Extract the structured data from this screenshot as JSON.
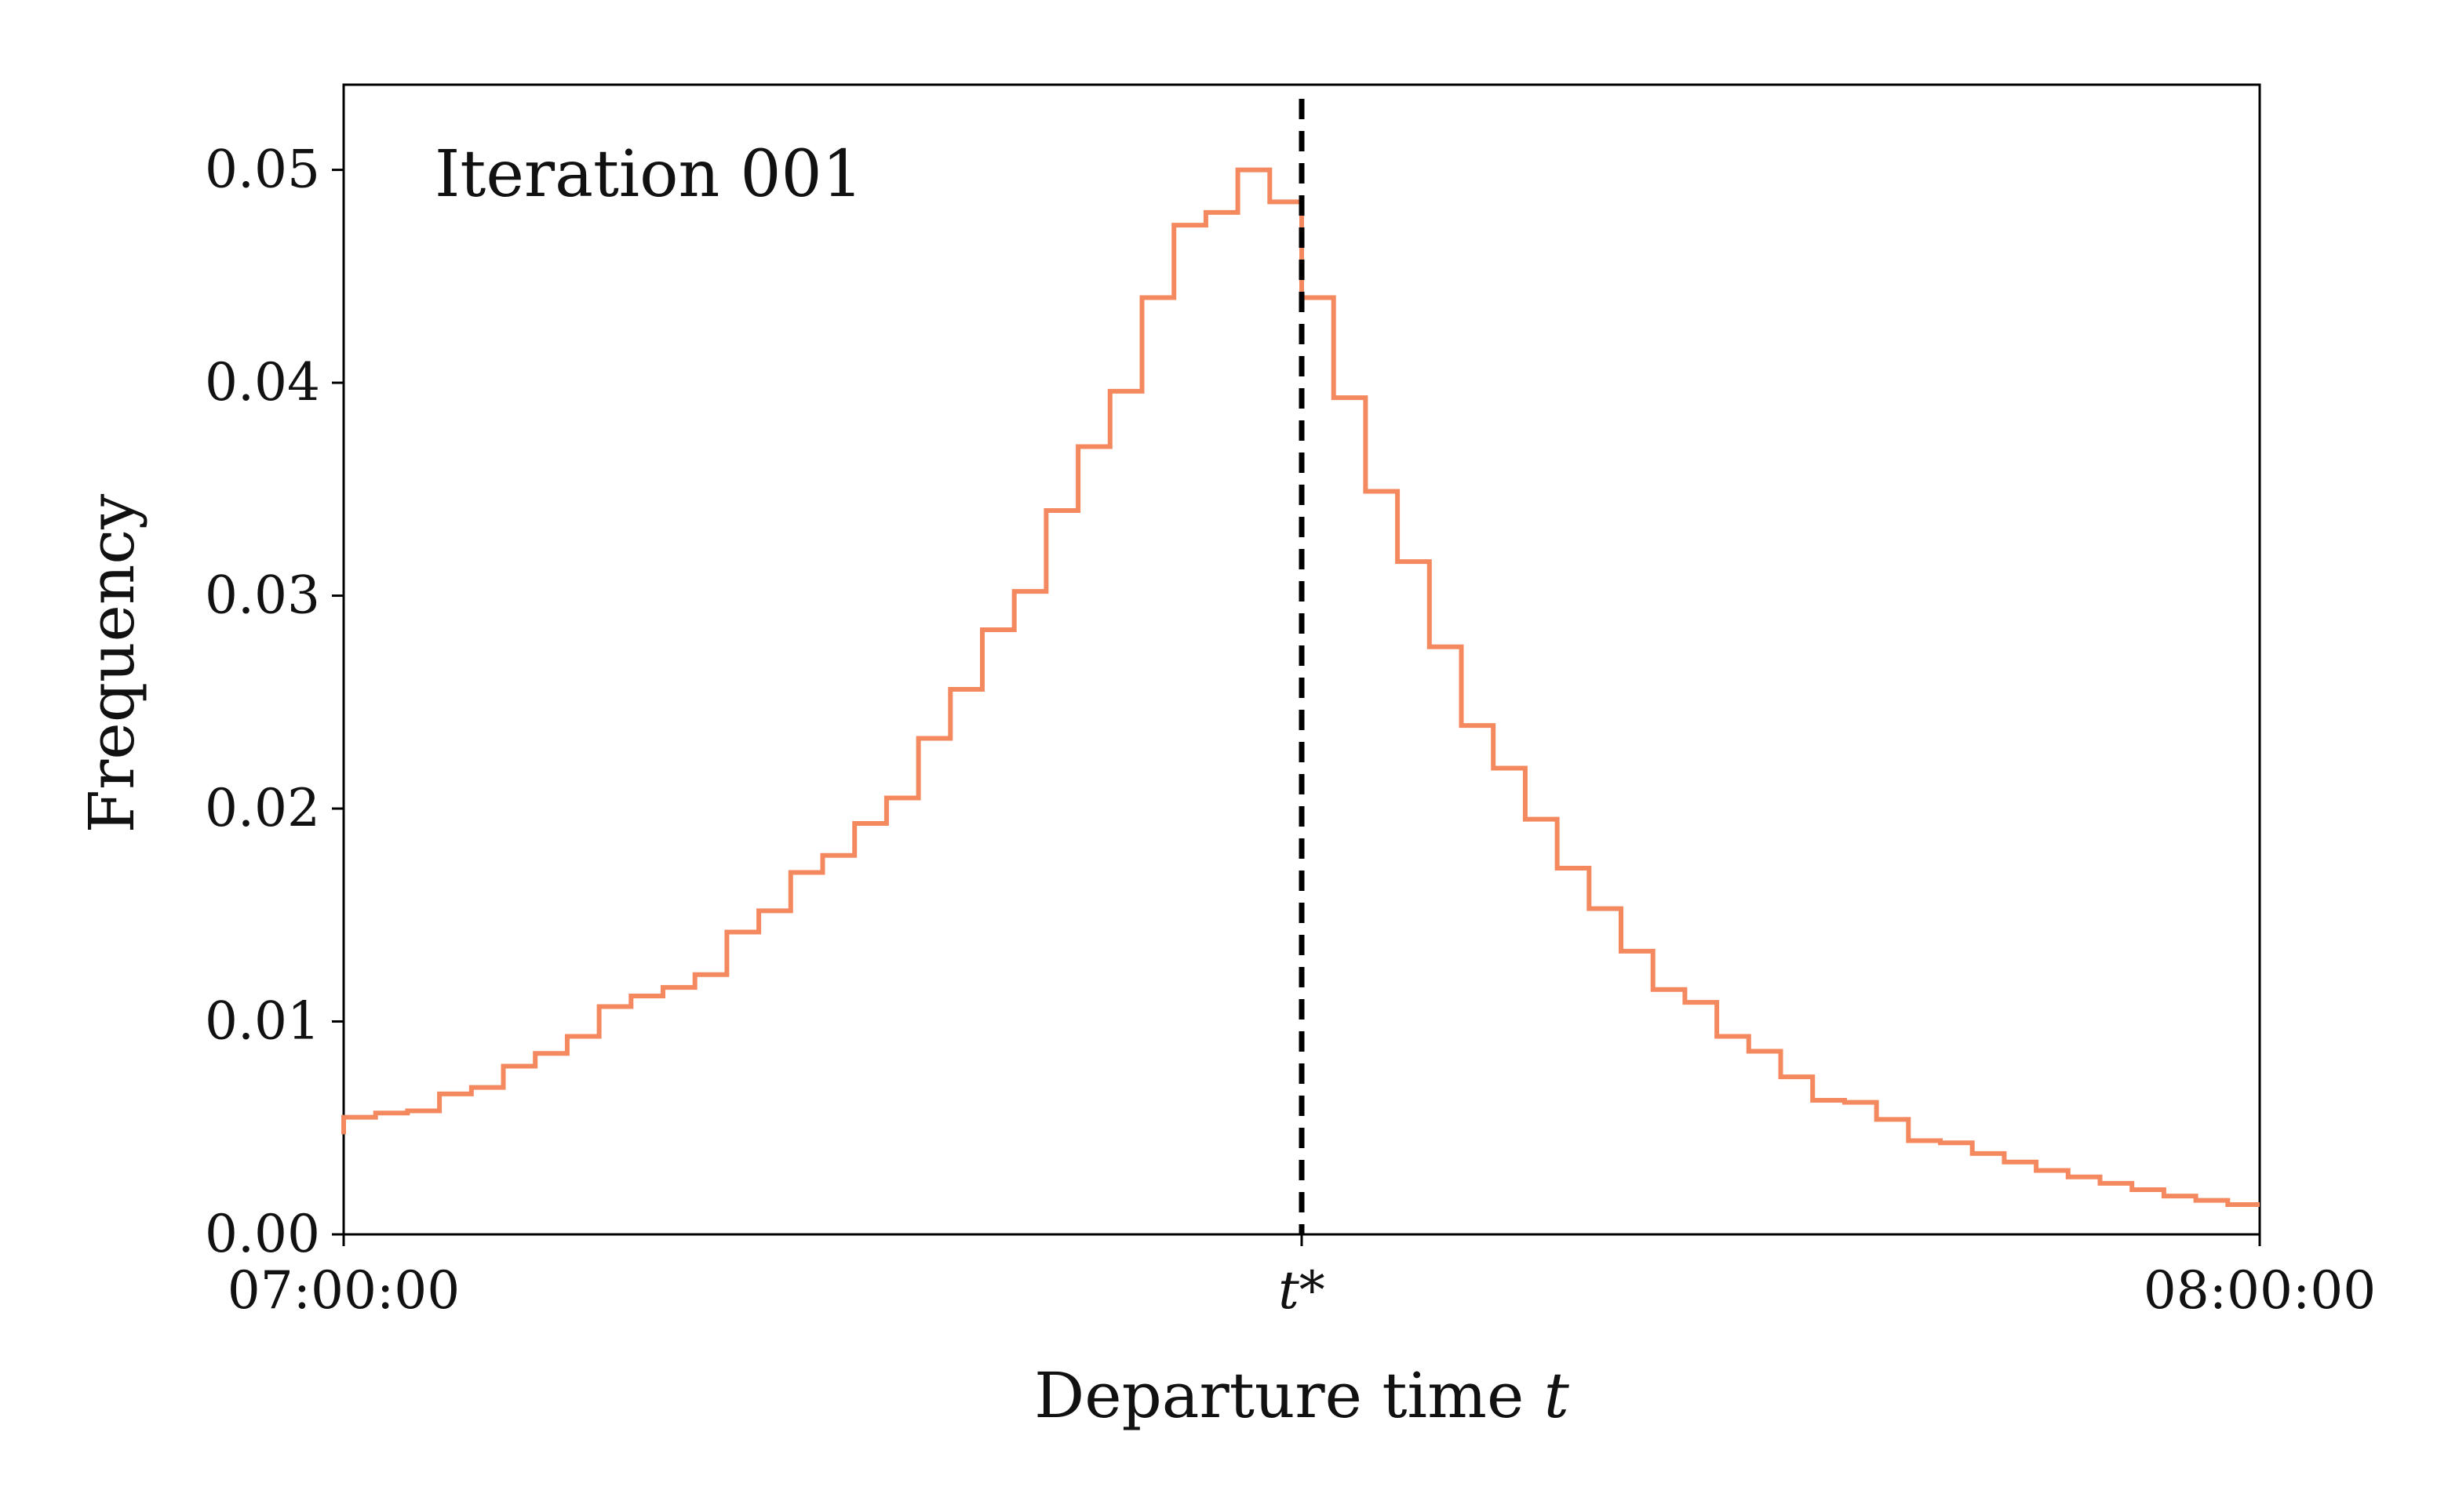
{
  "chart_data": {
    "type": "line",
    "step": true,
    "annotation": "Iteration 001",
    "xlabel": "Departure time ",
    "xlabel_var": "t",
    "ylabel": "Frequency",
    "x_tick_labels": [
      "07:00:00",
      "t*",
      "08:00:00"
    ],
    "x_range_minutes": [
      0,
      60
    ],
    "reference_line": {
      "x_minutes": 30,
      "label": "t*",
      "style": "dashed",
      "color": "#000000"
    },
    "ylim": [
      0,
      0.054
    ],
    "yticks": [
      "0.00",
      "0.01",
      "0.02",
      "0.03",
      "0.04",
      "0.05"
    ],
    "ytick_values": [
      0,
      0.01,
      0.02,
      0.03,
      0.04,
      0.05
    ],
    "grid": false,
    "series": [
      {
        "color": "#f4895f",
        "x_minutes": [
          0.5,
          1.5,
          2.5,
          3.5,
          4.5,
          5.5,
          6.5,
          7.5,
          8.5,
          9.5,
          10.5,
          11.5,
          12.5,
          13.5,
          14.5,
          15.5,
          16.5,
          17.5,
          18.5,
          19.5,
          20.5,
          21.5,
          22.5,
          23.5,
          24.5,
          25.5,
          26.5,
          27.5,
          28.5,
          29.5,
          30.5,
          31.5,
          32.5,
          33.5,
          34.5,
          35.5,
          36.5,
          37.5,
          38.5,
          39.5,
          40.5,
          41.5,
          42.5,
          43.5,
          44.5,
          45.5,
          46.5,
          47.5,
          48.5,
          49.5,
          50.5,
          51.5,
          52.5,
          53.5,
          54.5,
          55.5,
          56.5,
          57.5,
          58.5,
          59.5
        ],
        "values": [
          0.0055,
          0.0057,
          0.0058,
          0.0066,
          0.0069,
          0.0079,
          0.0085,
          0.0093,
          0.0107,
          0.0112,
          0.0116,
          0.0122,
          0.0142,
          0.0152,
          0.017,
          0.0178,
          0.0193,
          0.0205,
          0.0233,
          0.0256,
          0.0284,
          0.0302,
          0.034,
          0.037,
          0.0396,
          0.044,
          0.0474,
          0.048,
          0.05,
          0.0485,
          0.044,
          0.0393,
          0.0349,
          0.0316,
          0.0276,
          0.0239,
          0.0219,
          0.0195,
          0.0172,
          0.0153,
          0.0133,
          0.0115,
          0.0109,
          0.0093,
          0.0086,
          0.0074,
          0.0063,
          0.0062,
          0.0054,
          0.0044,
          0.0043,
          0.0038,
          0.0034,
          0.003,
          0.0027,
          0.0024,
          0.0021,
          0.0018,
          0.0016,
          0.0014
        ]
      }
    ]
  }
}
